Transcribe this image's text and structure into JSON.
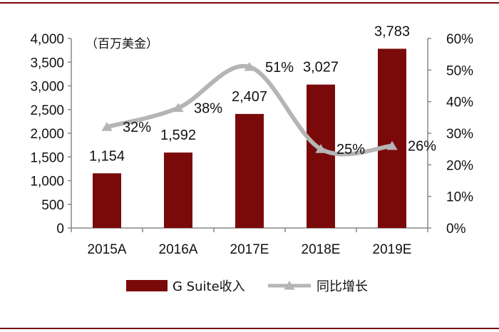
{
  "chart_data": {
    "type": "bar",
    "unit_label": "（百万美金）",
    "categories": [
      "2015A",
      "2016A",
      "2017E",
      "2018E",
      "2019E"
    ],
    "series": [
      {
        "name": "G Suite收入",
        "type": "bar",
        "axis": "left",
        "values": [
          1154,
          1592,
          2407,
          3027,
          3783
        ],
        "labels": [
          "1,154",
          "1,592",
          "2,407",
          "3,027",
          "3,783"
        ],
        "color": "#7a0a0a"
      },
      {
        "name": "同比增长",
        "type": "line",
        "axis": "right",
        "values": [
          32,
          38,
          51,
          25,
          26
        ],
        "labels": [
          "32%",
          "38%",
          "51%",
          "25%",
          "26%"
        ],
        "color": "#b5b5b5"
      }
    ],
    "y_left": {
      "ylim": [
        0,
        4000
      ],
      "ticks": [
        0,
        500,
        1000,
        1500,
        2000,
        2500,
        3000,
        3500,
        4000
      ],
      "tick_labels": [
        "0",
        "500",
        "1,000",
        "1,500",
        "2,000",
        "2,500",
        "3,000",
        "3,500",
        "4,000"
      ]
    },
    "y_right": {
      "ylim": [
        0,
        60
      ],
      "ticks": [
        0,
        10,
        20,
        30,
        40,
        50,
        60
      ],
      "tick_labels": [
        "0%",
        "10%",
        "20%",
        "30%",
        "40%",
        "50%",
        "60%"
      ]
    },
    "legend_position": "bottom",
    "grid": false,
    "frame_color": "#7a0a0a"
  }
}
